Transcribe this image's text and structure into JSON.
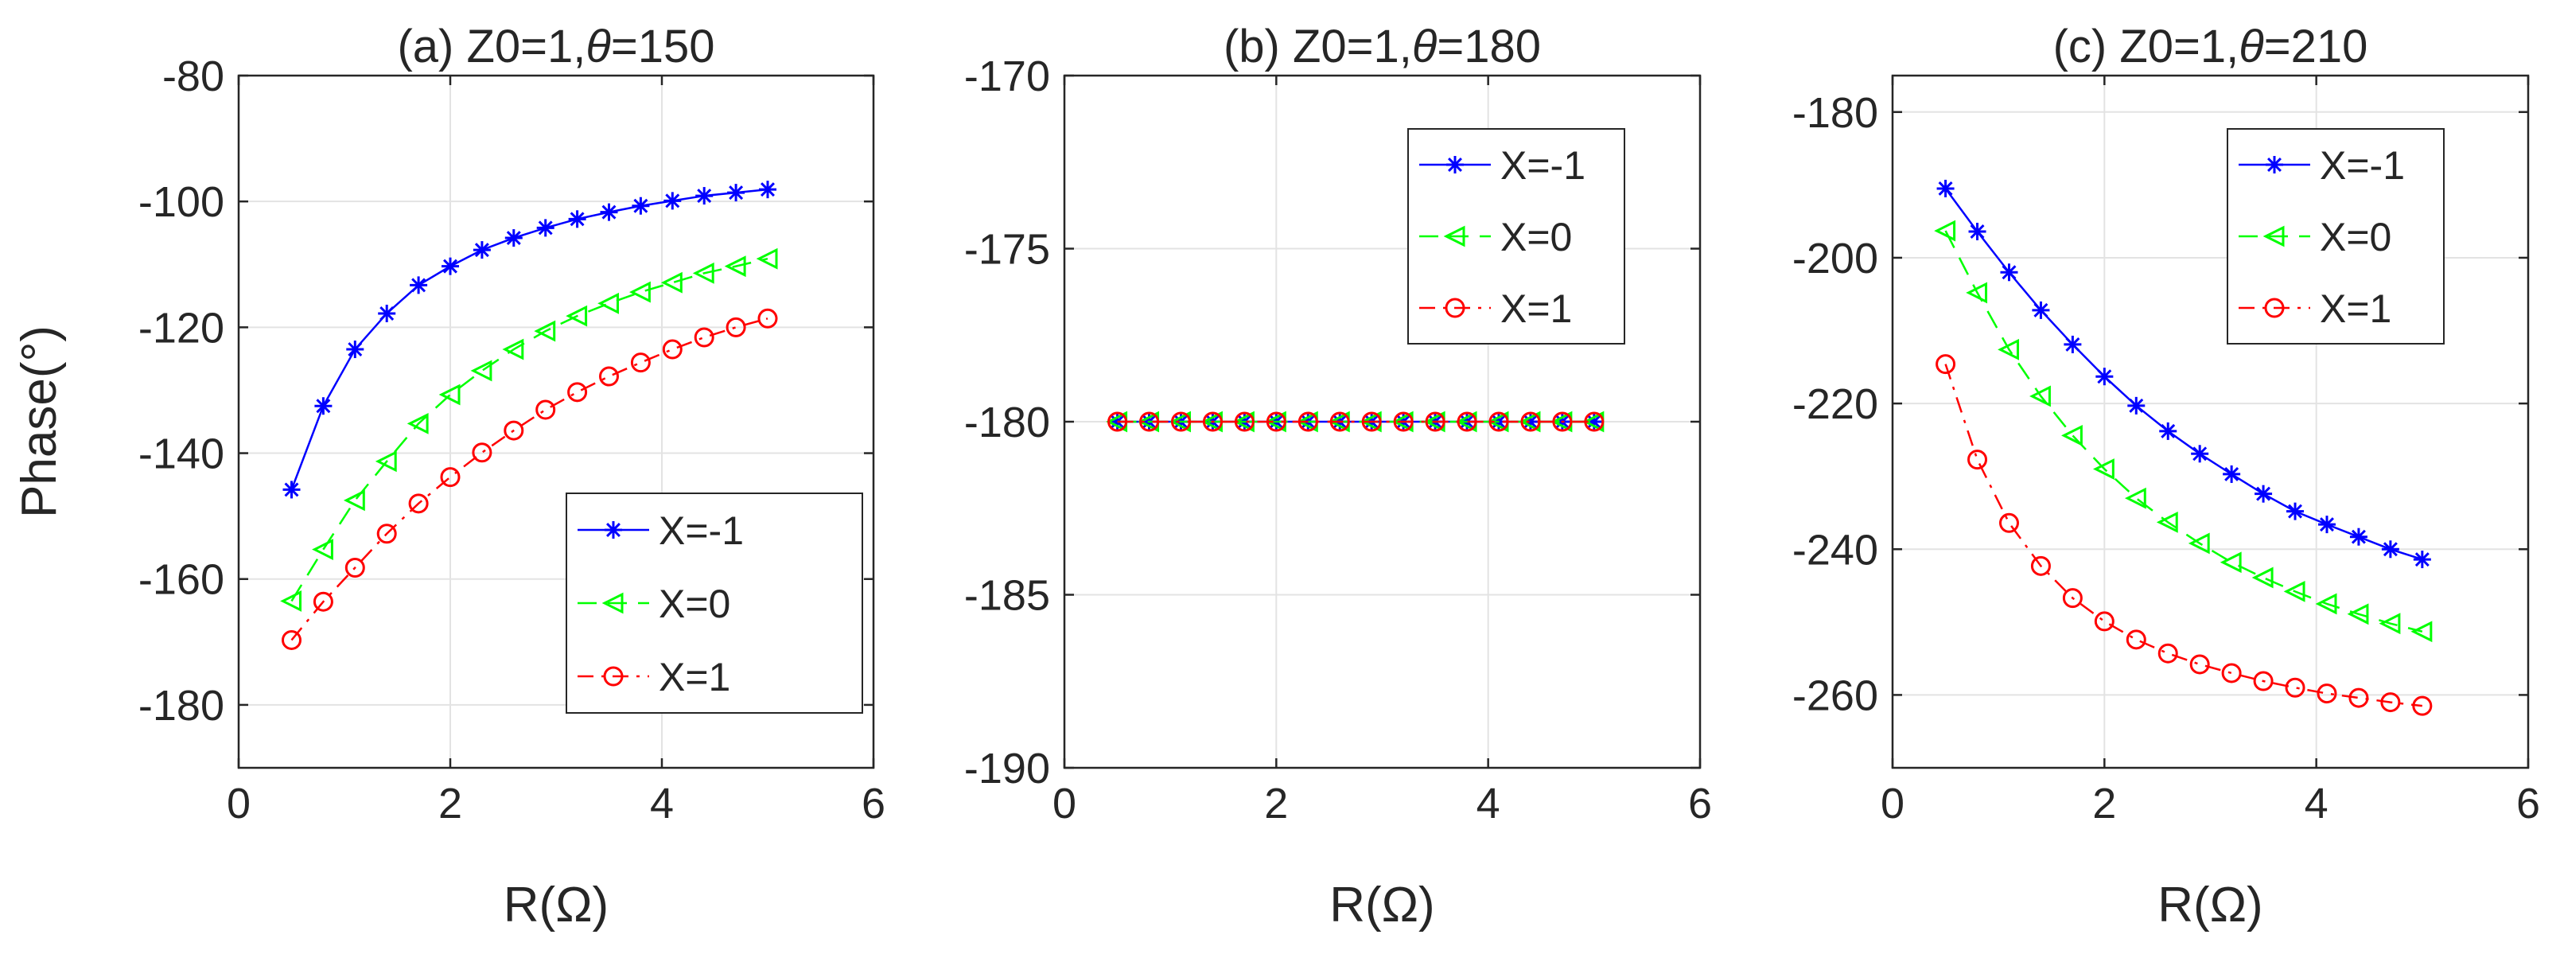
{
  "chart_data": [
    {
      "type": "line",
      "title_prefix": "(a) Z0=1,",
      "title_theta": "θ",
      "title_suffix": "=150",
      "xlabel": "R(Ω)",
      "ylabel": "Phase(°)",
      "xlim": [
        0,
        6
      ],
      "ylim": [
        -190,
        -80
      ],
      "xticks": [
        0,
        2,
        4,
        6
      ],
      "yticks": [
        -180,
        -160,
        -140,
        -120,
        -100,
        -80
      ],
      "grid": true,
      "legend_position": "bottom-right",
      "x": [
        0.5,
        0.8,
        1.1,
        1.4,
        1.7,
        2.0,
        2.3,
        2.6,
        2.9,
        3.2,
        3.5,
        3.8,
        4.1,
        4.4,
        4.7,
        5.0
      ],
      "series": [
        {
          "name": "X=-1",
          "marker": "asterisk",
          "color": "#0000ff",
          "dash": "solid",
          "values": [
            -145.8,
            -132.5,
            -123.5,
            -117.8,
            -113.3,
            -110.3,
            -107.7,
            -105.8,
            -104.2,
            -102.8,
            -101.7,
            -100.7,
            -99.9,
            -99.1,
            -98.6,
            -98.1
          ]
        },
        {
          "name": "X=0",
          "marker": "triangle-left",
          "color": "#00ff00",
          "dash": "dashed",
          "values": [
            -163.5,
            -155.3,
            -147.5,
            -141.3,
            -135.3,
            -130.7,
            -126.9,
            -123.5,
            -120.6,
            -118.2,
            -116.2,
            -114.4,
            -112.9,
            -111.4,
            -110.3,
            -109.1
          ]
        },
        {
          "name": "X=1",
          "marker": "circle",
          "color": "#ff0000",
          "dash": "dashdot",
          "values": [
            -169.7,
            -163.6,
            -158.2,
            -152.8,
            -148.0,
            -143.8,
            -139.9,
            -136.4,
            -133.1,
            -130.3,
            -127.8,
            -125.6,
            -123.5,
            -121.6,
            -120.0,
            -118.6
          ]
        }
      ]
    },
    {
      "type": "line",
      "title_prefix": "(b) Z0=1,",
      "title_theta": "θ",
      "title_suffix": "=180",
      "xlabel": "R(Ω)",
      "ylabel": "",
      "xlim": [
        0,
        6
      ],
      "ylim": [
        -190,
        -170
      ],
      "xticks": [
        0,
        2,
        4,
        6
      ],
      "yticks": [
        -190,
        -185,
        -180,
        -175,
        -170
      ],
      "grid": true,
      "legend_position": "top-right",
      "x": [
        0.5,
        0.8,
        1.1,
        1.4,
        1.7,
        2.0,
        2.3,
        2.6,
        2.9,
        3.2,
        3.5,
        3.8,
        4.1,
        4.4,
        4.7,
        5.0
      ],
      "series": [
        {
          "name": "X=-1",
          "marker": "asterisk",
          "color": "#0000ff",
          "dash": "solid",
          "values": [
            -180,
            -180,
            -180,
            -180,
            -180,
            -180,
            -180,
            -180,
            -180,
            -180,
            -180,
            -180,
            -180,
            -180,
            -180,
            -180
          ]
        },
        {
          "name": "X=0",
          "marker": "triangle-left",
          "color": "#00ff00",
          "dash": "dashed",
          "values": [
            -180,
            -180,
            -180,
            -180,
            -180,
            -180,
            -180,
            -180,
            -180,
            -180,
            -180,
            -180,
            -180,
            -180,
            -180,
            -180
          ]
        },
        {
          "name": "X=1",
          "marker": "circle",
          "color": "#ff0000",
          "dash": "dashdot",
          "values": [
            -180,
            -180,
            -180,
            -180,
            -180,
            -180,
            -180,
            -180,
            -180,
            -180,
            -180,
            -180,
            -180,
            -180,
            -180,
            -180
          ]
        }
      ]
    },
    {
      "type": "line",
      "title_prefix": "(c) Z0=1,",
      "title_theta": "θ",
      "title_suffix": "=210",
      "xlabel": "R(Ω)",
      "ylabel": "",
      "xlim": [
        0,
        6
      ],
      "ylim": [
        -270,
        -175
      ],
      "xticks": [
        0,
        2,
        4,
        6
      ],
      "yticks": [
        -260,
        -240,
        -220,
        -200,
        -180
      ],
      "grid": true,
      "legend_position": "top-right",
      "x": [
        0.5,
        0.8,
        1.1,
        1.4,
        1.7,
        2.0,
        2.3,
        2.6,
        2.9,
        3.2,
        3.5,
        3.8,
        4.1,
        4.4,
        4.7,
        5.0
      ],
      "series": [
        {
          "name": "X=-1",
          "marker": "asterisk",
          "color": "#0000ff",
          "dash": "solid",
          "values": [
            -190.5,
            -196.4,
            -202.0,
            -207.2,
            -211.9,
            -216.3,
            -220.3,
            -223.8,
            -226.9,
            -229.7,
            -232.4,
            -234.8,
            -236.6,
            -238.3,
            -240.0,
            -241.4
          ]
        },
        {
          "name": "X=0",
          "marker": "triangle-left",
          "color": "#00ff00",
          "dash": "dashed",
          "values": [
            -196.3,
            -204.8,
            -212.6,
            -219.0,
            -224.4,
            -229.0,
            -233.0,
            -236.3,
            -239.2,
            -241.8,
            -243.9,
            -245.8,
            -247.5,
            -248.9,
            -250.2,
            -251.3
          ]
        },
        {
          "name": "X=1",
          "marker": "circle",
          "color": "#ff0000",
          "dash": "dashdot",
          "values": [
            -214.6,
            -227.7,
            -236.4,
            -242.3,
            -246.7,
            -249.9,
            -252.4,
            -254.3,
            -255.8,
            -257.0,
            -258.1,
            -259.0,
            -259.8,
            -260.4,
            -261.0,
            -261.5
          ]
        }
      ]
    }
  ]
}
